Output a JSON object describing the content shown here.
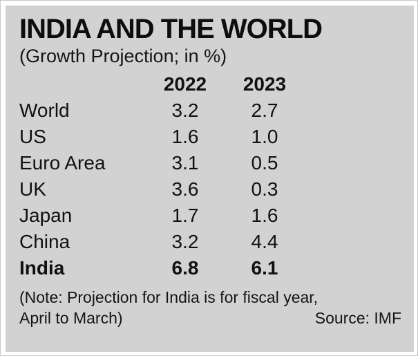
{
  "panel": {
    "title": "INDIA AND THE WORLD",
    "subtitle": "(Growth Projection; in %)",
    "note_line1": "(Note: Projection for India is for fiscal year,",
    "note_line2": "April to March)",
    "source": "Source: IMF"
  },
  "colors": {
    "panel_background": "#d2d2d2",
    "text": "#111111",
    "frame": "#ffffff"
  },
  "chart_data": {
    "type": "table",
    "title": "INDIA AND THE WORLD",
    "subtitle": "(Growth Projection; in %)",
    "columns": [
      "2022",
      "2023"
    ],
    "rows": [
      {
        "label": "World",
        "values": [
          "3.2",
          "2.7"
        ]
      },
      {
        "label": "US",
        "values": [
          "1.6",
          "1.0"
        ]
      },
      {
        "label": "Euro Area",
        "values": [
          "3.1",
          "0.5"
        ]
      },
      {
        "label": "UK",
        "values": [
          "3.6",
          "0.3"
        ]
      },
      {
        "label": "Japan",
        "values": [
          "1.7",
          "1.6"
        ]
      },
      {
        "label": "China",
        "values": [
          "3.2",
          "4.4"
        ]
      },
      {
        "label": "India",
        "values": [
          "6.8",
          "6.1"
        ]
      }
    ],
    "emphasized_row": "India",
    "note": "(Note: Projection for India is for fiscal year, April to March)",
    "source": "Source: IMF"
  }
}
